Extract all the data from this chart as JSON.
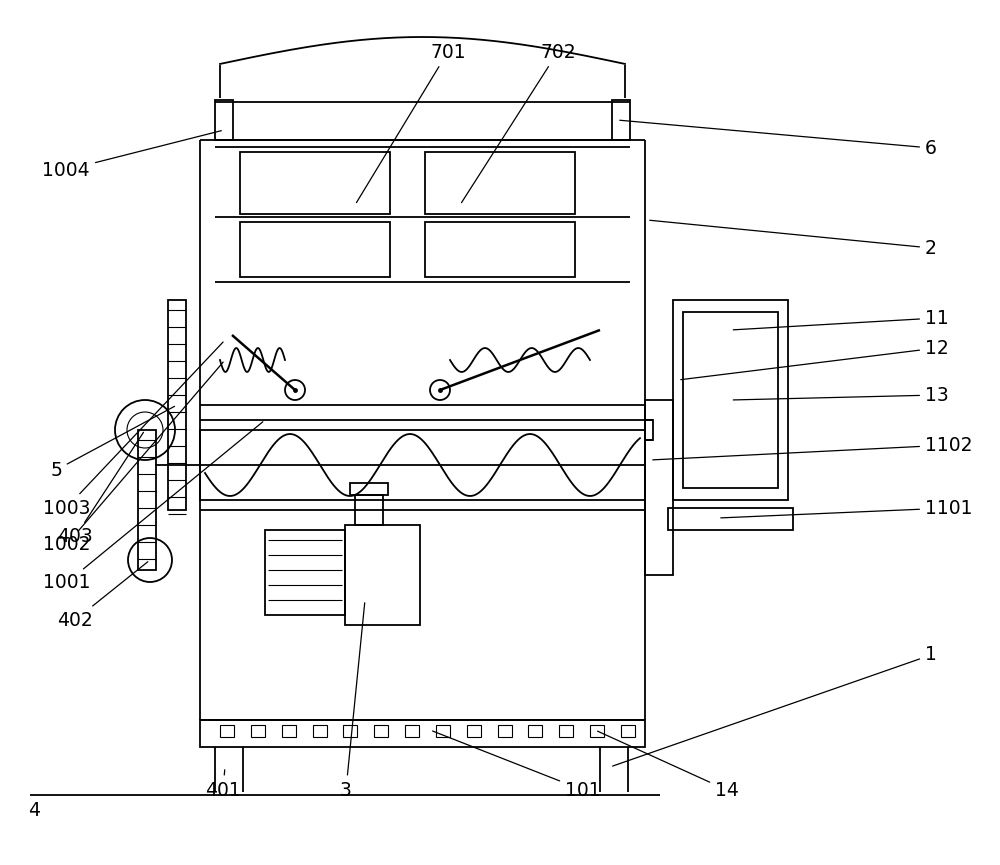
{
  "bg_color": "#ffffff",
  "lc": "#000000",
  "lw": 1.3,
  "fig_w": 10.0,
  "fig_h": 8.65
}
